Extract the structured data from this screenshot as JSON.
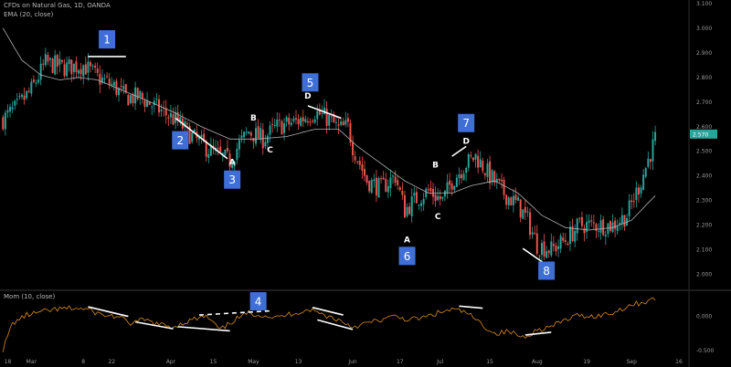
{
  "header": {
    "symbol_title": "CFDs on Natural Gas, 1D, OANDA",
    "indicator_main": "EMA (20, close)",
    "indicator_sub": "Mom (10, close)"
  },
  "colors": {
    "background": "#000000",
    "up": "#26a69a",
    "down": "#ef5350",
    "ema": "#b0b0b0",
    "momentum": "#d98a1c",
    "badge": "#3f6fd6",
    "price_tag": "#26a69a",
    "annotation": "#ffffff"
  },
  "price_tag": "2.570",
  "chart_data": [
    {
      "type": "candlestick",
      "title": "CFDs on Natural Gas, 1D, OANDA",
      "ylim": [
        1.95,
        3.1
      ],
      "y_ticks": [
        "3.100",
        "3.000",
        "2.900",
        "2.800",
        "2.700",
        "2.600",
        "2.500",
        "2.400",
        "2.300",
        "2.200",
        "2.100",
        "2.000"
      ],
      "x_ticks": [
        "18",
        "Mar",
        "8",
        "22",
        "Apr",
        "15",
        "May",
        "13",
        "Jun",
        "17",
        "Jul",
        "15",
        "Aug",
        "19",
        "Sep",
        "16"
      ],
      "x_tick_pos": [
        2,
        12,
        34,
        46,
        71,
        89,
        106,
        125,
        148,
        168,
        185,
        206,
        226,
        247,
        266,
        286
      ],
      "n_bars": 290,
      "anchors": [
        [
          0,
          2.63
        ],
        [
          6,
          2.68
        ],
        [
          12,
          2.75
        ],
        [
          18,
          2.86
        ],
        [
          26,
          2.84
        ],
        [
          34,
          2.85
        ],
        [
          40,
          2.8
        ],
        [
          46,
          2.77
        ],
        [
          52,
          2.72
        ],
        [
          58,
          2.72
        ],
        [
          66,
          2.67
        ],
        [
          74,
          2.62
        ],
        [
          80,
          2.56
        ],
        [
          88,
          2.5
        ],
        [
          96,
          2.46
        ],
        [
          100,
          2.53
        ],
        [
          104,
          2.58
        ],
        [
          110,
          2.55
        ],
        [
          116,
          2.6
        ],
        [
          124,
          2.62
        ],
        [
          132,
          2.66
        ],
        [
          138,
          2.63
        ],
        [
          142,
          2.59
        ],
        [
          146,
          2.6
        ],
        [
          148,
          2.52
        ],
        [
          154,
          2.38
        ],
        [
          160,
          2.35
        ],
        [
          166,
          2.4
        ],
        [
          170,
          2.26
        ],
        [
          174,
          2.3
        ],
        [
          180,
          2.34
        ],
        [
          186,
          2.3
        ],
        [
          190,
          2.38
        ],
        [
          196,
          2.45
        ],
        [
          200,
          2.48
        ],
        [
          206,
          2.4
        ],
        [
          212,
          2.33
        ],
        [
          218,
          2.28
        ],
        [
          222,
          2.22
        ],
        [
          226,
          2.12
        ],
        [
          232,
          2.1
        ],
        [
          238,
          2.14
        ],
        [
          244,
          2.2
        ],
        [
          250,
          2.2
        ],
        [
          258,
          2.2
        ],
        [
          264,
          2.24
        ],
        [
          270,
          2.38
        ],
        [
          276,
          2.55
        ]
      ],
      "ema_anchors": [
        [
          0,
          3.0
        ],
        [
          8,
          2.87
        ],
        [
          16,
          2.81
        ],
        [
          24,
          2.79
        ],
        [
          32,
          2.8
        ],
        [
          40,
          2.79
        ],
        [
          50,
          2.75
        ],
        [
          60,
          2.71
        ],
        [
          72,
          2.66
        ],
        [
          84,
          2.6
        ],
        [
          96,
          2.55
        ],
        [
          108,
          2.55
        ],
        [
          120,
          2.56
        ],
        [
          132,
          2.59
        ],
        [
          142,
          2.59
        ],
        [
          150,
          2.52
        ],
        [
          160,
          2.45
        ],
        [
          170,
          2.38
        ],
        [
          180,
          2.33
        ],
        [
          190,
          2.33
        ],
        [
          198,
          2.36
        ],
        [
          208,
          2.38
        ],
        [
          218,
          2.33
        ],
        [
          228,
          2.24
        ],
        [
          238,
          2.19
        ],
        [
          248,
          2.18
        ],
        [
          258,
          2.19
        ],
        [
          266,
          2.22
        ],
        [
          276,
          2.32
        ]
      ],
      "annotations": [
        {
          "label": "A",
          "x": 97,
          "y": 2.445
        },
        {
          "label": "B",
          "x": 106,
          "y": 2.625
        },
        {
          "label": "C",
          "x": 113,
          "y": 2.495
        },
        {
          "label": "D",
          "x": 129,
          "y": 2.715
        },
        {
          "label": "A",
          "x": 171,
          "y": 2.13
        },
        {
          "label": "B",
          "x": 183,
          "y": 2.435
        },
        {
          "label": "C",
          "x": 184,
          "y": 2.225
        },
        {
          "label": "D",
          "x": 196,
          "y": 2.53
        }
      ],
      "trend_lines": [
        {
          "x1": 36,
          "y1": 2.885,
          "x2": 52,
          "y2": 2.885
        },
        {
          "x1": 73,
          "y1": 2.635,
          "x2": 95,
          "y2": 2.47
        },
        {
          "x1": 129,
          "y1": 2.685,
          "x2": 143,
          "y2": 2.635
        },
        {
          "x1": 190,
          "y1": 2.48,
          "x2": 196,
          "y2": 2.52
        },
        {
          "x1": 220,
          "y1": 2.105,
          "x2": 229,
          "y2": 2.045
        }
      ],
      "badges": [
        {
          "label": "1",
          "x": 44,
          "y": 2.955
        },
        {
          "label": "2",
          "x": 75,
          "y": 2.545
        },
        {
          "label": "3",
          "x": 97,
          "y": 2.385
        },
        {
          "label": "5",
          "x": 130,
          "y": 2.78
        },
        {
          "label": "6",
          "x": 171,
          "y": 2.075
        },
        {
          "label": "7",
          "x": 196,
          "y": 2.615
        },
        {
          "label": "8",
          "x": 230,
          "y": 2.015
        }
      ]
    },
    {
      "type": "line",
      "title": "Mom (10, close)",
      "ylim": [
        -0.55,
        0.3
      ],
      "y_ticks": [
        "0.000",
        "-0.500"
      ],
      "series": [
        {
          "values_anchors": [
            [
              0,
              -0.48
            ],
            [
              4,
              -0.1
            ],
            [
              10,
              0.02
            ],
            [
              16,
              0.06
            ],
            [
              22,
              0.1
            ],
            [
              30,
              0.12
            ],
            [
              36,
              0.1
            ],
            [
              42,
              0.02
            ],
            [
              48,
              0.0
            ],
            [
              54,
              -0.1
            ],
            [
              60,
              -0.05
            ],
            [
              66,
              -0.12
            ],
            [
              72,
              -0.15
            ],
            [
              80,
              -0.05
            ],
            [
              86,
              0.0
            ],
            [
              92,
              -0.2
            ],
            [
              98,
              -0.05
            ],
            [
              104,
              0.05
            ],
            [
              110,
              0.02
            ],
            [
              116,
              -0.02
            ],
            [
              122,
              0.04
            ],
            [
              130,
              0.1
            ],
            [
              136,
              0.02
            ],
            [
              142,
              -0.05
            ],
            [
              148,
              -0.15
            ],
            [
              154,
              -0.1
            ],
            [
              160,
              -0.05
            ],
            [
              166,
              0.0
            ],
            [
              172,
              -0.05
            ],
            [
              178,
              -0.02
            ],
            [
              184,
              0.05
            ],
            [
              190,
              0.1
            ],
            [
              196,
              0.06
            ],
            [
              202,
              -0.1
            ],
            [
              208,
              -0.25
            ],
            [
              214,
              -0.22
            ],
            [
              220,
              -0.3
            ],
            [
              226,
              -0.2
            ],
            [
              232,
              -0.15
            ],
            [
              238,
              -0.05
            ],
            [
              244,
              0.02
            ],
            [
              250,
              0.0
            ],
            [
              258,
              0.05
            ],
            [
              264,
              0.15
            ],
            [
              270,
              0.2
            ],
            [
              276,
              0.25
            ]
          ]
        }
      ],
      "trend_lines": [
        {
          "x1": 36,
          "y1": 0.14,
          "x2": 53,
          "y2": 0.0,
          "dashed": false
        },
        {
          "x1": 56,
          "y1": -0.08,
          "x2": 72,
          "y2": -0.18,
          "dashed": false
        },
        {
          "x1": 74,
          "y1": -0.15,
          "x2": 96,
          "y2": -0.21,
          "dashed": false
        },
        {
          "x1": 83,
          "y1": 0.02,
          "x2": 113,
          "y2": 0.08,
          "dashed": true
        },
        {
          "x1": 131,
          "y1": 0.13,
          "x2": 144,
          "y2": 0.02,
          "dashed": false
        },
        {
          "x1": 133,
          "y1": -0.05,
          "x2": 148,
          "y2": -0.19,
          "dashed": false
        },
        {
          "x1": 193,
          "y1": 0.15,
          "x2": 203,
          "y2": 0.12,
          "dashed": false
        },
        {
          "x1": 221,
          "y1": -0.27,
          "x2": 232,
          "y2": -0.23,
          "dashed": false
        }
      ],
      "badges": [
        {
          "label": "4",
          "x": 108,
          "y": 0.22
        }
      ]
    }
  ]
}
